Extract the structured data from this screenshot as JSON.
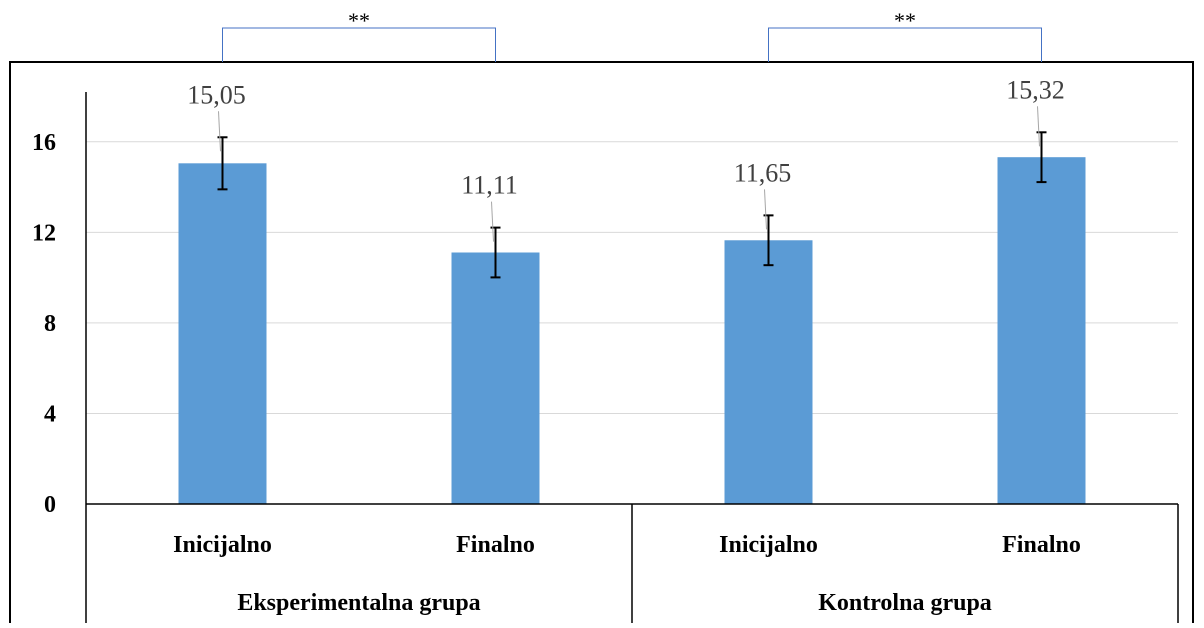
{
  "chart_data": {
    "type": "bar",
    "title": "",
    "xlabel": "",
    "ylabel": "",
    "ylim": [
      0,
      18.2
    ],
    "yticks": [
      0,
      4,
      8,
      12,
      16
    ],
    "y_tick_labels": [
      "0",
      "4",
      "8",
      "12",
      "16"
    ],
    "grid": true,
    "categories": [
      "Inicijalno",
      "Finalno",
      "Inicijalno",
      "Finalno"
    ],
    "groups": [
      {
        "label": "Eksperimentalna grupa",
        "categories": [
          "Inicijalno",
          "Finalno"
        ]
      },
      {
        "label": "Kontrolna grupa",
        "categories": [
          "Inicijalno",
          "Finalno"
        ]
      }
    ],
    "values": [
      15.05,
      11.11,
      11.65,
      15.32
    ],
    "value_labels": [
      "15,05",
      "11,11",
      "11,65",
      "15,32"
    ],
    "error_bars": [
      1.15,
      1.1,
      1.1,
      1.1
    ],
    "significance": [
      {
        "label": "**",
        "group": 0
      },
      {
        "label": "**",
        "group": 1
      }
    ],
    "bar_color": "#5B9BD5",
    "grid_color": "#D9D9D9",
    "bracket_color": "#4472C4"
  }
}
